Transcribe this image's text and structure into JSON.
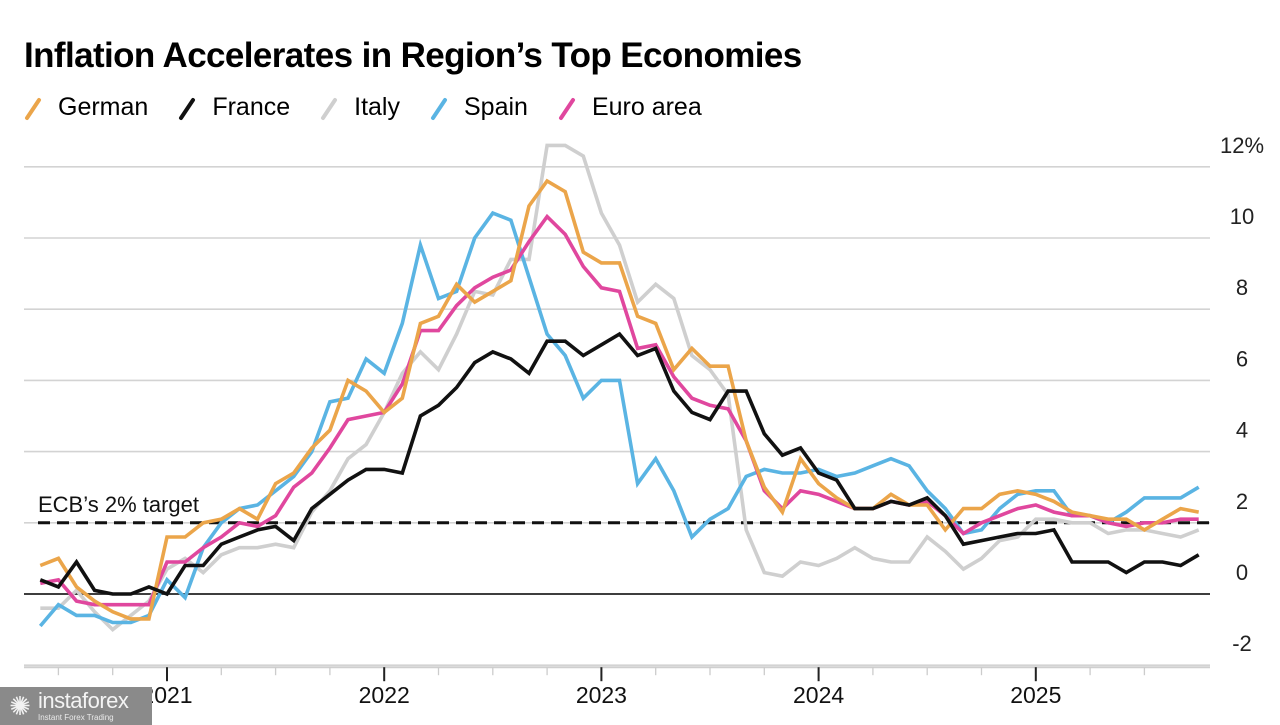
{
  "chart_data": {
    "type": "line",
    "title": "Inflation Accelerates in Region’s Top Economies",
    "xlabel": "",
    "ylabel": "",
    "y_unit_suffix": "%",
    "ylim": [
      -2,
      12.6
    ],
    "yticks": [
      12,
      10,
      8,
      6,
      4,
      2,
      0,
      -2
    ],
    "ytick_labels": [
      "12%",
      "10",
      "8",
      "6",
      "4",
      "2",
      "0",
      "-2"
    ],
    "xtick_labels": [
      "2021",
      "2022",
      "2023",
      "2024",
      "2025"
    ],
    "x_start": "2020-06",
    "x_end": "2025-10",
    "frequency": "monthly",
    "grid": true,
    "legend_position": "top-left",
    "annotations": [
      {
        "text": "ECB’s 2% target",
        "y": 2
      }
    ],
    "series": [
      {
        "name": "German",
        "color": "#eba54a",
        "values": [
          0.8,
          1.0,
          0.2,
          -0.2,
          -0.5,
          -0.7,
          -0.7,
          1.6,
          1.6,
          2.0,
          2.1,
          2.4,
          2.1,
          3.1,
          3.4,
          4.1,
          4.6,
          6.0,
          5.7,
          5.1,
          5.5,
          7.6,
          7.8,
          8.7,
          8.2,
          8.5,
          8.8,
          10.9,
          11.6,
          11.3,
          9.6,
          9.3,
          9.3,
          7.8,
          7.6,
          6.3,
          6.9,
          6.4,
          6.4,
          4.3,
          3.0,
          2.3,
          3.8,
          3.1,
          2.7,
          2.4,
          2.4,
          2.8,
          2.5,
          2.5,
          1.8,
          2.4,
          2.4,
          2.8,
          2.9,
          2.8,
          2.6,
          2.3,
          2.2,
          2.1,
          2.1,
          1.8,
          2.1,
          2.4,
          2.3
        ]
      },
      {
        "name": "France",
        "color": "#111111",
        "values": [
          0.4,
          0.2,
          0.9,
          0.1,
          0.0,
          0.0,
          0.2,
          0.0,
          0.8,
          0.8,
          1.4,
          1.6,
          1.8,
          1.9,
          1.5,
          2.4,
          2.8,
          3.2,
          3.5,
          3.5,
          3.4,
          5.0,
          5.3,
          5.8,
          6.5,
          6.8,
          6.6,
          6.2,
          7.1,
          7.1,
          6.7,
          7.0,
          7.3,
          6.7,
          6.9,
          5.7,
          5.1,
          4.9,
          5.7,
          5.7,
          4.5,
          3.9,
          4.1,
          3.4,
          3.2,
          2.4,
          2.4,
          2.6,
          2.5,
          2.7,
          2.2,
          1.4,
          1.5,
          1.6,
          1.7,
          1.7,
          1.8,
          0.9,
          0.9,
          0.9,
          0.6,
          0.9,
          0.9,
          0.8,
          1.1
        ]
      },
      {
        "name": "Italy",
        "color": "#cfcfcf",
        "values": [
          -0.4,
          -0.4,
          0.1,
          -0.5,
          -1.0,
          -0.6,
          -0.2,
          0.7,
          1.0,
          0.6,
          1.1,
          1.3,
          1.3,
          1.4,
          1.3,
          2.3,
          2.9,
          3.8,
          4.2,
          5.1,
          6.2,
          6.8,
          6.3,
          7.3,
          8.5,
          8.4,
          9.4,
          9.4,
          12.6,
          12.6,
          12.3,
          10.7,
          9.8,
          8.2,
          8.7,
          8.3,
          6.7,
          6.3,
          5.6,
          1.8,
          0.6,
          0.5,
          0.9,
          0.8,
          1.0,
          1.3,
          1.0,
          0.9,
          0.9,
          1.6,
          1.2,
          0.7,
          1.0,
          1.5,
          1.6,
          2.1,
          2.1,
          2.0,
          2.0,
          1.7,
          1.8,
          1.8,
          1.7,
          1.6,
          1.8
        ]
      },
      {
        "name": "Spain",
        "color": "#5ab4e3",
        "values": [
          -0.9,
          -0.3,
          -0.6,
          -0.6,
          -0.8,
          -0.8,
          -0.6,
          0.4,
          -0.1,
          1.3,
          2.0,
          2.4,
          2.5,
          2.9,
          3.3,
          4.0,
          5.4,
          5.5,
          6.6,
          6.2,
          7.6,
          9.8,
          8.3,
          8.5,
          10.0,
          10.7,
          10.5,
          8.9,
          7.3,
          6.7,
          5.5,
          6.0,
          6.0,
          3.1,
          3.8,
          2.9,
          1.6,
          2.1,
          2.4,
          3.3,
          3.5,
          3.4,
          3.4,
          3.5,
          3.3,
          3.4,
          3.6,
          3.8,
          3.6,
          2.9,
          2.4,
          1.7,
          1.8,
          2.4,
          2.8,
          2.9,
          2.9,
          2.2,
          2.2,
          2.0,
          2.3,
          2.7,
          2.7,
          2.7,
          3.0
        ]
      },
      {
        "name": "Euro area",
        "color": "#e0479e",
        "values": [
          0.3,
          0.4,
          -0.2,
          -0.3,
          -0.3,
          -0.3,
          -0.3,
          0.9,
          0.9,
          1.3,
          1.6,
          2.0,
          1.9,
          2.2,
          3.0,
          3.4,
          4.1,
          4.9,
          5.0,
          5.1,
          5.9,
          7.4,
          7.4,
          8.1,
          8.6,
          8.9,
          9.1,
          9.9,
          10.6,
          10.1,
          9.2,
          8.6,
          8.5,
          6.9,
          7.0,
          6.1,
          5.5,
          5.3,
          5.2,
          4.3,
          2.9,
          2.4,
          2.9,
          2.8,
          2.6,
          2.4,
          2.4,
          2.6,
          2.5,
          2.6,
          2.2,
          1.7,
          2.0,
          2.2,
          2.4,
          2.5,
          2.3,
          2.2,
          2.2,
          2.0,
          1.9,
          2.0,
          2.0,
          2.1,
          2.1
        ]
      }
    ]
  },
  "watermark": {
    "brand": "instaforex",
    "tagline": "Instant Forex Trading"
  }
}
